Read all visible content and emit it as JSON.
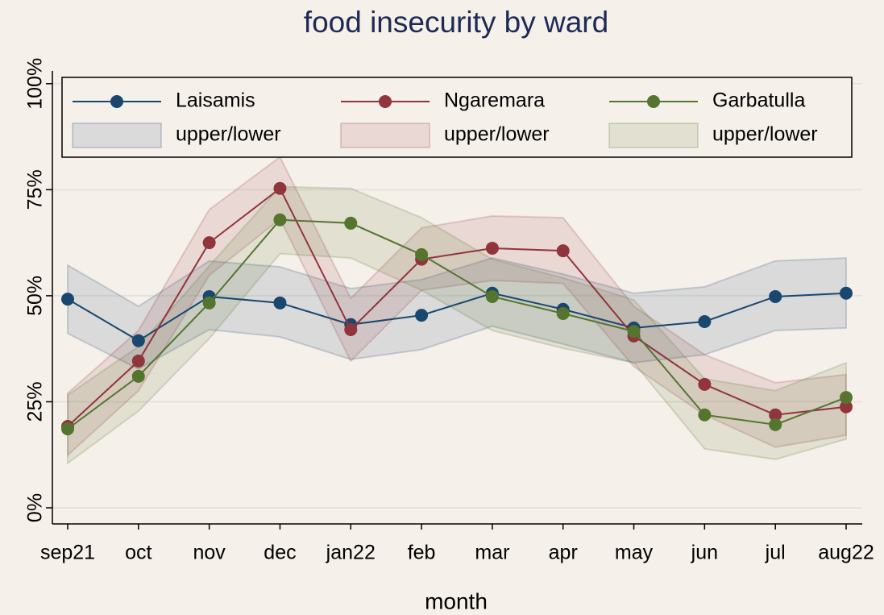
{
  "chart_data": {
    "type": "line",
    "title": "food insecurity by ward",
    "xlabel": "month",
    "categories": [
      "sep21",
      "oct",
      "nov",
      "dec",
      "jan22",
      "feb",
      "mar",
      "apr",
      "may",
      "jun",
      "jul",
      "aug22"
    ],
    "ylim": [
      -3.8,
      103
    ],
    "yticks": [
      {
        "value": 0,
        "label": "0%"
      },
      {
        "value": 25,
        "label": "25%"
      },
      {
        "value": 50,
        "label": "50%"
      },
      {
        "value": 75,
        "label": "75%"
      },
      {
        "value": 100,
        "label": "100%"
      }
    ],
    "grid": true,
    "legend": "top",
    "series": [
      {
        "name": "Laisamis",
        "color": "#1a476f",
        "values": [
          49.2,
          39.4,
          49.8,
          48.3,
          43.2,
          45.4,
          50.6,
          46.8,
          42.4,
          43.9,
          49.8,
          50.6
        ],
        "band": {
          "name": "upper/lower",
          "upper": [
            57.2,
            47.5,
            58.2,
            56.8,
            51.7,
            53.8,
            58.9,
            55.1,
            50.6,
            52.1,
            58.2,
            58.9
          ],
          "lower": [
            41.1,
            32.7,
            42.0,
            40.3,
            35.0,
            37.3,
            42.8,
            38.6,
            34.2,
            36.1,
            41.8,
            42.4
          ]
        }
      },
      {
        "name": "Ngaremara",
        "color": "#90353b",
        "values": [
          19.2,
          34.6,
          62.5,
          75.3,
          42.0,
          58.6,
          61.2,
          60.6,
          40.5,
          29.1,
          21.9,
          23.8
        ],
        "band": {
          "name": "upper/lower",
          "upper": [
            27.0,
            41.8,
            70.3,
            82.7,
            49.4,
            66.0,
            68.8,
            68.4,
            47.5,
            36.1,
            29.5,
            31.4
          ],
          "lower": [
            12.4,
            27.6,
            54.8,
            68.1,
            34.6,
            51.3,
            53.6,
            52.9,
            33.3,
            21.9,
            14.3,
            17.1
          ]
        }
      },
      {
        "name": "Garbatulla",
        "color": "#55752f",
        "values": [
          18.6,
          31.0,
          48.3,
          67.9,
          67.1,
          59.7,
          49.8,
          45.8,
          41.6,
          21.9,
          19.6,
          26.0
        ],
        "band": {
          "name": "upper/lower",
          "upper": [
            26.6,
            38.0,
            57.0,
            75.7,
            75.3,
            68.4,
            58.6,
            54.2,
            49.0,
            30.4,
            27.6,
            34.2
          ],
          "lower": [
            10.5,
            22.8,
            39.9,
            59.9,
            58.9,
            51.3,
            41.8,
            37.6,
            34.2,
            13.9,
            11.4,
            16.2
          ]
        }
      }
    ]
  }
}
